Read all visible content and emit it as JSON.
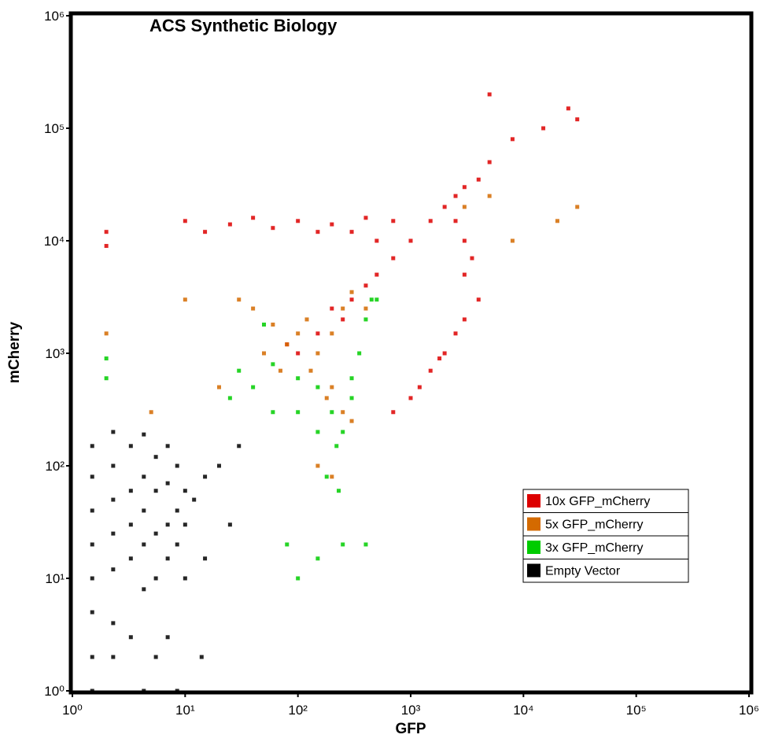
{
  "chart_data": {
    "type": "scatter",
    "title": "ACS Synthetic Biology",
    "x_label": "GFP",
    "y_label": "mCherry",
    "log_x": true,
    "log_y": true,
    "xlim": [
      1,
      1000000
    ],
    "ylim": [
      1,
      1000000
    ],
    "xticks": [
      {
        "value": 1,
        "label": "10⁰"
      },
      {
        "value": 10,
        "label": "10¹"
      },
      {
        "value": 100,
        "label": "10²"
      },
      {
        "value": 1000,
        "label": "10³"
      },
      {
        "value": 10000,
        "label": "10⁴"
      },
      {
        "value": 100000,
        "label": "10⁵"
      },
      {
        "value": 1000000,
        "label": "10⁶"
      }
    ],
    "yticks": [
      {
        "value": 1,
        "label": "10⁰"
      },
      {
        "value": 10,
        "label": "10¹"
      },
      {
        "value": 100,
        "label": "10²"
      },
      {
        "value": 1000,
        "label": "10³"
      },
      {
        "value": 10000,
        "label": "10⁴"
      },
      {
        "value": 100000,
        "label": "10⁵"
      },
      {
        "value": 1000000,
        "label": "10⁶"
      }
    ],
    "legend_position": "lower right",
    "series": [
      {
        "name": "10x GFP_mCherry",
        "color": "#dd0000",
        "x": [
          2,
          2,
          10,
          15,
          25,
          40,
          60,
          100,
          150,
          200,
          300,
          400,
          500,
          700,
          300,
          400,
          500,
          700,
          1000,
          1500,
          2000,
          2500,
          3000,
          4000,
          2500,
          3000,
          3500,
          3000,
          4000,
          3000,
          2500,
          2000,
          1500,
          1200,
          1800,
          5000,
          8000,
          15000,
          25000,
          30000,
          5000,
          150,
          200,
          100,
          80,
          250,
          1000,
          700
        ],
        "values": [
          12000,
          9000,
          15000,
          12000,
          14000,
          16000,
          13000,
          15000,
          12000,
          14000,
          12000,
          16000,
          10000,
          15000,
          3000,
          4000,
          5000,
          7000,
          10000,
          15000,
          20000,
          25000,
          30000,
          35000,
          15000,
          10000,
          7000,
          5000,
          3000,
          2000,
          1500,
          1000,
          700,
          500,
          900,
          50000,
          80000,
          100000,
          150000,
          120000,
          200000,
          1500,
          2500,
          1000,
          1200,
          2000,
          400,
          300
        ]
      },
      {
        "name": "5x GFP_mCherry",
        "color": "#d46a00",
        "x": [
          100,
          80,
          120,
          150,
          60,
          200,
          250,
          50,
          70,
          130,
          200,
          250,
          300,
          180,
          40,
          30,
          300,
          400,
          5000,
          3000,
          8000,
          20000,
          30000,
          10,
          2,
          5,
          150,
          200,
          20
        ],
        "values": [
          1500,
          1200,
          2000,
          1000,
          1800,
          1500,
          2500,
          1000,
          700,
          700,
          500,
          300,
          250,
          400,
          2500,
          3000,
          3500,
          2500,
          25000,
          20000,
          10000,
          15000,
          20000,
          3000,
          1500,
          300,
          100,
          80,
          500
        ]
      },
      {
        "name": "3x GFP_mCherry",
        "color": "#00cc00",
        "x": [
          50,
          60,
          40,
          100,
          150,
          200,
          250,
          220,
          300,
          350,
          400,
          450,
          300,
          180,
          230,
          150,
          100,
          60,
          80,
          100,
          150,
          250,
          400,
          2,
          2,
          30,
          25,
          500
        ],
        "values": [
          1800,
          800,
          500,
          600,
          500,
          300,
          200,
          150,
          400,
          1000,
          2000,
          3000,
          600,
          80,
          60,
          200,
          300,
          300,
          20,
          10,
          15,
          20,
          20,
          900,
          600,
          700,
          400,
          3000
        ]
      },
      {
        "name": "Empty Vector",
        "color": "#000000",
        "x": [
          1.5,
          1.5,
          1.5,
          1.5,
          1.5,
          1.5,
          1.5,
          1.5,
          2.3,
          2.3,
          2.3,
          2.3,
          2.3,
          2.3,
          2.3,
          3.3,
          3.3,
          3.3,
          3.3,
          3.3,
          4.3,
          4.3,
          4.3,
          4.3,
          4.3,
          4.3,
          5.5,
          5.5,
          5.5,
          5.5,
          5.5,
          7,
          7,
          7,
          7,
          7,
          8.5,
          8.5,
          8.5,
          8.5,
          10,
          10,
          10,
          12,
          15,
          15,
          20,
          25,
          30,
          14
        ],
        "values": [
          150,
          80,
          40,
          20,
          10,
          5,
          2,
          1,
          200,
          100,
          50,
          25,
          12,
          4,
          2,
          150,
          60,
          30,
          15,
          3,
          190,
          80,
          40,
          20,
          8,
          1,
          120,
          60,
          25,
          10,
          2,
          150,
          70,
          30,
          15,
          3,
          100,
          40,
          20,
          1,
          60,
          30,
          10,
          50,
          80,
          15,
          100,
          30,
          150,
          2
        ]
      }
    ]
  }
}
